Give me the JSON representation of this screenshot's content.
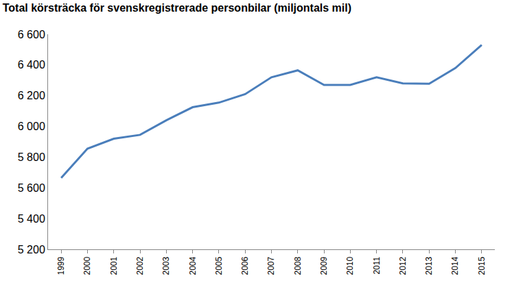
{
  "chart_data": {
    "type": "line",
    "title": "Total körsträcka för svenskregistrerade personbilar (miljontals mil)",
    "categories": [
      "1999",
      "2000",
      "2001",
      "2002",
      "2003",
      "2004",
      "2005",
      "2006",
      "2007",
      "2008",
      "2009",
      "2010",
      "2011",
      "2012",
      "2013",
      "2014",
      "2015"
    ],
    "values": [
      5665,
      5855,
      5920,
      5945,
      6040,
      6125,
      6155,
      6210,
      6320,
      6365,
      6270,
      6270,
      6320,
      6280,
      6278,
      6380,
      6530
    ],
    "color": "#4a7ebb",
    "ylim": [
      5200,
      6600
    ],
    "yticks": [
      {
        "value": 5200,
        "label": "5 200"
      },
      {
        "value": 5400,
        "label": "5 400"
      },
      {
        "value": 5600,
        "label": "5 600"
      },
      {
        "value": 5800,
        "label": "5 800"
      },
      {
        "value": 6000,
        "label": "6 000"
      },
      {
        "value": 6200,
        "label": "6 200"
      },
      {
        "value": 6400,
        "label": "6 400"
      },
      {
        "value": 6600,
        "label": "6 600"
      }
    ],
    "grid": false
  }
}
